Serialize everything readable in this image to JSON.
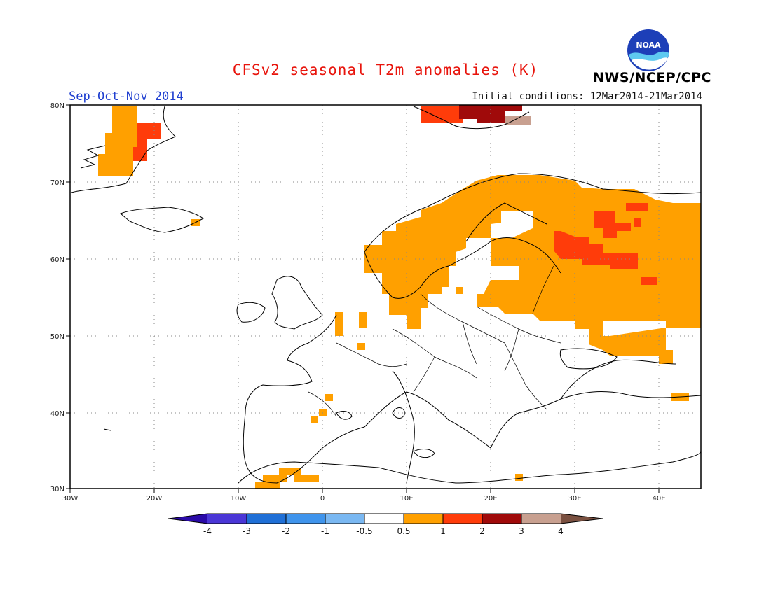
{
  "header": {
    "title": "CFSv2 seasonal T2m anomalies (K)",
    "season": "Sep-Oct-Nov 2014",
    "initial_conditions": "Initial conditions: 12Mar2014-21Mar2014",
    "agency": "NWS/NCEP/CPC",
    "logo_text": "NOAA"
  },
  "map": {
    "lon_range": [
      -30,
      45
    ],
    "lat_range": [
      30,
      80
    ],
    "lon_ticks": [
      "30W",
      "20W",
      "10W",
      "0",
      "10E",
      "20E",
      "30E",
      "40E"
    ],
    "lat_ticks": [
      "30N",
      "40N",
      "50N",
      "60N",
      "70N",
      "80N"
    ],
    "grid": "dotted"
  },
  "colorbar": {
    "labels": [
      "-4",
      "-3",
      "-2",
      "-1",
      "-0.5",
      "0.5",
      "1",
      "2",
      "3",
      "4"
    ],
    "colors": [
      "#2a0aa8",
      "#4a36d6",
      "#1f6fd6",
      "#3f94ec",
      "#7ab8f2",
      "#ffffff",
      "#ffa000",
      "#ff3c0a",
      "#a00a0a",
      "#c8a090",
      "#7a5040"
    ]
  }
}
